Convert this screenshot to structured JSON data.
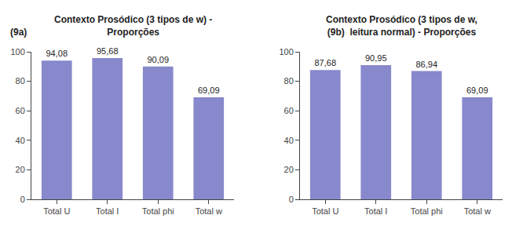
{
  "chart_data": [
    {
      "type": "bar",
      "title": "Contexto Prosódico (3 tipos de w) -\nProporções",
      "annotations": [
        "(9a)"
      ],
      "categories": [
        "Total U",
        "Total I",
        "Total phi",
        "Total w"
      ],
      "values": [
        94.08,
        95.68,
        90.09,
        69.09
      ],
      "value_labels": [
        "94,08",
        "95,68",
        "90,09",
        "69,09"
      ],
      "data_labels": true,
      "color": "#8888cc",
      "ylim": [
        0,
        100
      ],
      "yticks": [
        0,
        20,
        40,
        60,
        80,
        100
      ],
      "grid": false
    },
    {
      "type": "bar",
      "title": "Contexto Prosódico (3 tipos de w,\n(9b)  leitura normal) - Proporções",
      "categories": [
        "Total U",
        "Total I",
        "Total phi",
        "Total w"
      ],
      "values": [
        87.68,
        90.95,
        86.94,
        69.09
      ],
      "value_labels": [
        "87,68",
        "90,95",
        "86,94",
        "69,09"
      ],
      "data_labels": true,
      "color": "#8888cc",
      "ylim": [
        0,
        100
      ],
      "yticks": [
        0,
        20,
        40,
        60,
        80,
        100
      ],
      "grid": false
    }
  ]
}
